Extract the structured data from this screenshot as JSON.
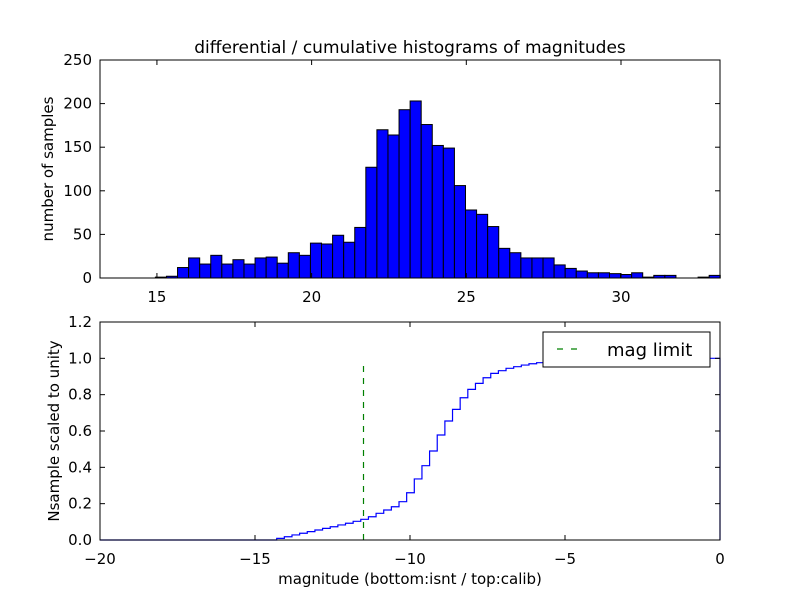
{
  "chart_data": [
    {
      "type": "bar",
      "subtype": "histogram",
      "title": "differential / cumulative histograms of magnitudes",
      "xlabel": "",
      "ylabel": "number of samples",
      "xlim": [
        13.16,
        33.2
      ],
      "ylim": [
        0,
        250
      ],
      "xticks": [
        "15",
        "20",
        "25",
        "30"
      ],
      "xtick_values": [
        15,
        20,
        25,
        30
      ],
      "yticks": [
        "0",
        "50",
        "100",
        "150",
        "200",
        "250"
      ],
      "ytick_values": [
        0,
        50,
        100,
        150,
        200,
        250
      ],
      "bin_start": 13.16,
      "bin_width": 0.358,
      "values": [
        0,
        0,
        0,
        0,
        0,
        1,
        2,
        12,
        23,
        16,
        26,
        16,
        21,
        16,
        23,
        24,
        17,
        29,
        26,
        40,
        39,
        49,
        41,
        58,
        127,
        170,
        164,
        193,
        203,
        176,
        152,
        149,
        106,
        78,
        73,
        59,
        34,
        29,
        23,
        23,
        23,
        15,
        11,
        8,
        6,
        6,
        5,
        4,
        6,
        1,
        3,
        3,
        0,
        0,
        1,
        3
      ],
      "bar_color": "#0000ff",
      "edge_color": "#000000"
    },
    {
      "type": "line",
      "subtype": "cumulative-step",
      "xlabel": "magnitude (bottom:isnt / top:calib)",
      "ylabel": "Nsample scaled to unity",
      "xlim": [
        -20,
        0
      ],
      "ylim": [
        0,
        1.2
      ],
      "xticks": [
        "−20",
        "−15",
        "−10",
        "−5",
        "0"
      ],
      "xtick_values": [
        -20,
        -15,
        -10,
        -5,
        0
      ],
      "yticks": [
        "0.0",
        "0.2",
        "0.4",
        "0.6",
        "0.8",
        "1.0",
        "1.2"
      ],
      "ytick_values": [
        0,
        0.2,
        0.4,
        0.6,
        0.8,
        1.0,
        1.2
      ],
      "step_start": -14.3,
      "step_width": 0.2466,
      "values": [
        0.009,
        0.018,
        0.028,
        0.037,
        0.046,
        0.055,
        0.064,
        0.073,
        0.083,
        0.092,
        0.103,
        0.114,
        0.128,
        0.147,
        0.165,
        0.183,
        0.211,
        0.26,
        0.336,
        0.409,
        0.49,
        0.578,
        0.655,
        0.719,
        0.783,
        0.829,
        0.862,
        0.893,
        0.917,
        0.932,
        0.945,
        0.954,
        0.963,
        0.97,
        0.976,
        0.98,
        0.984,
        0.987,
        0.99,
        0.992,
        0.994,
        0.995,
        0.996,
        0.997,
        0.998,
        0.998,
        0.999,
        0.999,
        0.999,
        0.999,
        1.0,
        1.0,
        1.0,
        1.0,
        1.0,
        1.0,
        1.0,
        1.0
      ],
      "line_color": "#0000ff",
      "mag_limit": {
        "x": -11.5,
        "ymax": 0.96,
        "color": "#008000",
        "label": "mag limit"
      },
      "legend": {
        "entries": [
          "mag limit"
        ],
        "placement": "top-right"
      }
    }
  ]
}
